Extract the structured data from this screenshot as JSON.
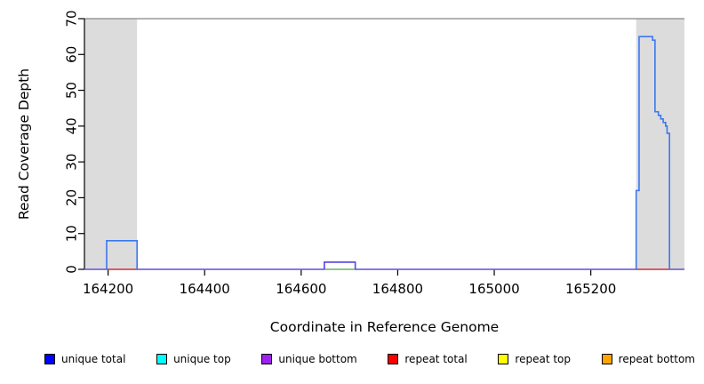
{
  "chart_data": {
    "type": "line",
    "title": "",
    "xlabel": "Coordinate in Reference Genome",
    "ylabel": "Read Coverage Depth",
    "xlim": [
      164151,
      165394
    ],
    "ylim": [
      0,
      70
    ],
    "xticks": [
      164200,
      164400,
      164600,
      164800,
      165000,
      165200
    ],
    "yticks": [
      0,
      10,
      20,
      30,
      40,
      50,
      60,
      70
    ],
    "grid": false,
    "legend_position": "bottom",
    "shade_color": "#dcdcdc",
    "top_border_color": "#9a9a9a",
    "axis_color": "#000000",
    "shaded_regions": [
      {
        "name": "masked-region-left",
        "from": 164151,
        "to": 164260
      },
      {
        "name": "masked-region-right",
        "from": 165294,
        "to": 165394
      }
    ],
    "series": [
      {
        "name": "baseline-left",
        "color": "#7767e8",
        "points": [
          [
            164151,
            0
          ],
          [
            164197,
            0
          ]
        ]
      },
      {
        "name": "repeat-total-under-step1",
        "color": "#e2444c",
        "points": [
          [
            164197,
            0
          ],
          [
            164260,
            0
          ]
        ]
      },
      {
        "name": "baseline-mid-1",
        "color": "#7767e8",
        "points": [
          [
            164260,
            0
          ],
          [
            164648,
            0
          ]
        ]
      },
      {
        "name": "unique-top-under-step2",
        "color": "#7cc87c",
        "points": [
          [
            164648,
            0
          ],
          [
            164712,
            0
          ]
        ]
      },
      {
        "name": "baseline-mid-2",
        "color": "#7767e8",
        "points": [
          [
            164712,
            0
          ],
          [
            165294,
            0
          ]
        ]
      },
      {
        "name": "repeat-total-under-peak",
        "color": "#e2444c",
        "points": [
          [
            165294,
            0
          ],
          [
            165363,
            0
          ]
        ]
      },
      {
        "name": "baseline-right",
        "color": "#7767e8",
        "points": [
          [
            165363,
            0
          ],
          [
            165394,
            0
          ]
        ]
      },
      {
        "name": "unique-total-step1",
        "color": "#3b78f0",
        "points": [
          [
            164197,
            0
          ],
          [
            164197,
            8
          ],
          [
            164260,
            8
          ],
          [
            164260,
            0
          ]
        ]
      },
      {
        "name": "unique-bottom-step2",
        "color": "#5742e0",
        "points": [
          [
            164648,
            0
          ],
          [
            164648,
            2
          ],
          [
            164712,
            2
          ],
          [
            164712,
            0
          ]
        ]
      },
      {
        "name": "unique-total-peak",
        "color": "#3b78f0",
        "points": [
          [
            165294,
            0
          ],
          [
            165294,
            22
          ],
          [
            165300,
            22
          ],
          [
            165300,
            65
          ],
          [
            165328,
            65
          ],
          [
            165328,
            64
          ],
          [
            165333,
            64
          ],
          [
            165333,
            44
          ],
          [
            165340,
            44
          ],
          [
            165340,
            43
          ],
          [
            165345,
            43
          ],
          [
            165345,
            42
          ],
          [
            165350,
            42
          ],
          [
            165350,
            41
          ],
          [
            165355,
            41
          ],
          [
            165355,
            40
          ],
          [
            165358,
            40
          ],
          [
            165358,
            38
          ],
          [
            165363,
            38
          ],
          [
            165363,
            0
          ]
        ]
      }
    ],
    "legend": [
      {
        "label": "unique total",
        "color": "#0000ff"
      },
      {
        "label": "unique top",
        "color": "#00ffff"
      },
      {
        "label": "unique bottom",
        "color": "#a020f0"
      },
      {
        "label": "repeat total",
        "color": "#ff0000"
      },
      {
        "label": "repeat top",
        "color": "#ffff00"
      },
      {
        "label": "repeat bottom",
        "color": "#ffa500"
      }
    ]
  }
}
